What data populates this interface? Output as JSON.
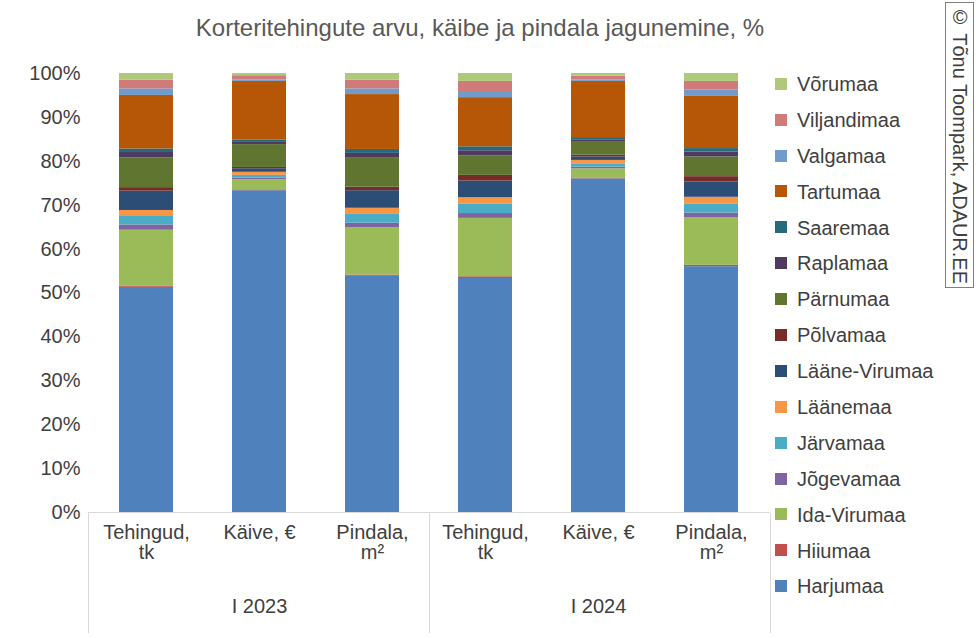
{
  "chart_data": {
    "type": "bar",
    "title": "Korteritehingute arvu, käibe ja pindala jagunemine, %",
    "annotation": "© Tõnu Toompark, ADAUR.EE",
    "categories": [
      "Tehingud, tk",
      "Käive, €",
      "Pindala, m²",
      "Tehingud, tk",
      "Käive, €",
      "Pindala, m²"
    ],
    "category_groups": [
      "I 2023",
      "I 2023",
      "I 2023",
      "I 2024",
      "I 2024",
      "I 2024"
    ],
    "series": [
      {
        "name": "Harjumaa",
        "color": "#4f81bd",
        "values": [
          51.3,
          73.3,
          53.8,
          53.3,
          76.0,
          56.0
        ]
      },
      {
        "name": "Hiiumaa",
        "color": "#c0504d",
        "values": [
          0.3,
          0.2,
          0.3,
          0.4,
          0.2,
          0.3
        ]
      },
      {
        "name": "Ida-Virumaa",
        "color": "#9bbb59",
        "values": [
          12.7,
          2.3,
          10.8,
          13.3,
          2.1,
          10.8
        ]
      },
      {
        "name": "Jõgevamaa",
        "color": "#8064a2",
        "values": [
          1.2,
          0.4,
          1.0,
          1.1,
          0.4,
          1.1
        ]
      },
      {
        "name": "Järvamaa",
        "color": "#4bacc6",
        "values": [
          2.1,
          0.6,
          2.0,
          2.1,
          0.6,
          2.0
        ]
      },
      {
        "name": "Läänemaa",
        "color": "#f79646",
        "values": [
          1.2,
          0.7,
          1.4,
          1.5,
          0.9,
          1.6
        ]
      },
      {
        "name": "Lääne-Virumaa",
        "color": "#2c4d75",
        "values": [
          4.4,
          0.8,
          4.0,
          3.8,
          0.8,
          3.5
        ]
      },
      {
        "name": "Põlvamaa",
        "color": "#772c2a",
        "values": [
          0.8,
          0.3,
          0.8,
          1.3,
          0.4,
          1.2
        ]
      },
      {
        "name": "Pärnumaa",
        "color": "#5f7530",
        "values": [
          6.8,
          5.2,
          6.6,
          4.4,
          3.1,
          4.5
        ]
      },
      {
        "name": "Raplamaa",
        "color": "#4d3b62",
        "values": [
          1.2,
          0.5,
          1.1,
          1.2,
          0.4,
          1.1
        ]
      },
      {
        "name": "Saaremaa",
        "color": "#276a7c",
        "values": [
          0.8,
          0.5,
          0.9,
          0.9,
          0.5,
          0.8
        ]
      },
      {
        "name": "Tartumaa",
        "color": "#b65708",
        "values": [
          12.2,
          13.4,
          12.5,
          11.2,
          12.8,
          12.0
        ]
      },
      {
        "name": "Valgamaa",
        "color": "#729aca",
        "values": [
          1.5,
          0.3,
          1.3,
          1.4,
          0.3,
          1.3
        ]
      },
      {
        "name": "Viljandimaa",
        "color": "#d07b79",
        "values": [
          2.0,
          1.0,
          2.0,
          2.3,
          0.9,
          2.0
        ]
      },
      {
        "name": "Võrumaa",
        "color": "#afc97a",
        "values": [
          1.5,
          0.5,
          1.5,
          1.8,
          0.6,
          1.8
        ]
      }
    ],
    "ylim": [
      0,
      100
    ],
    "yticks": [
      {
        "value": 0,
        "label": "0%"
      },
      {
        "value": 10,
        "label": "10%"
      },
      {
        "value": 20,
        "label": "20%"
      },
      {
        "value": 30,
        "label": "30%"
      },
      {
        "value": 40,
        "label": "40%"
      },
      {
        "value": 50,
        "label": "50%"
      },
      {
        "value": 60,
        "label": "60%"
      },
      {
        "value": 70,
        "label": "70%"
      },
      {
        "value": 80,
        "label": "80%"
      },
      {
        "value": 90,
        "label": "90%"
      },
      {
        "value": 100,
        "label": "100%"
      }
    ],
    "stacked": true,
    "grid": false,
    "legend": "right"
  }
}
